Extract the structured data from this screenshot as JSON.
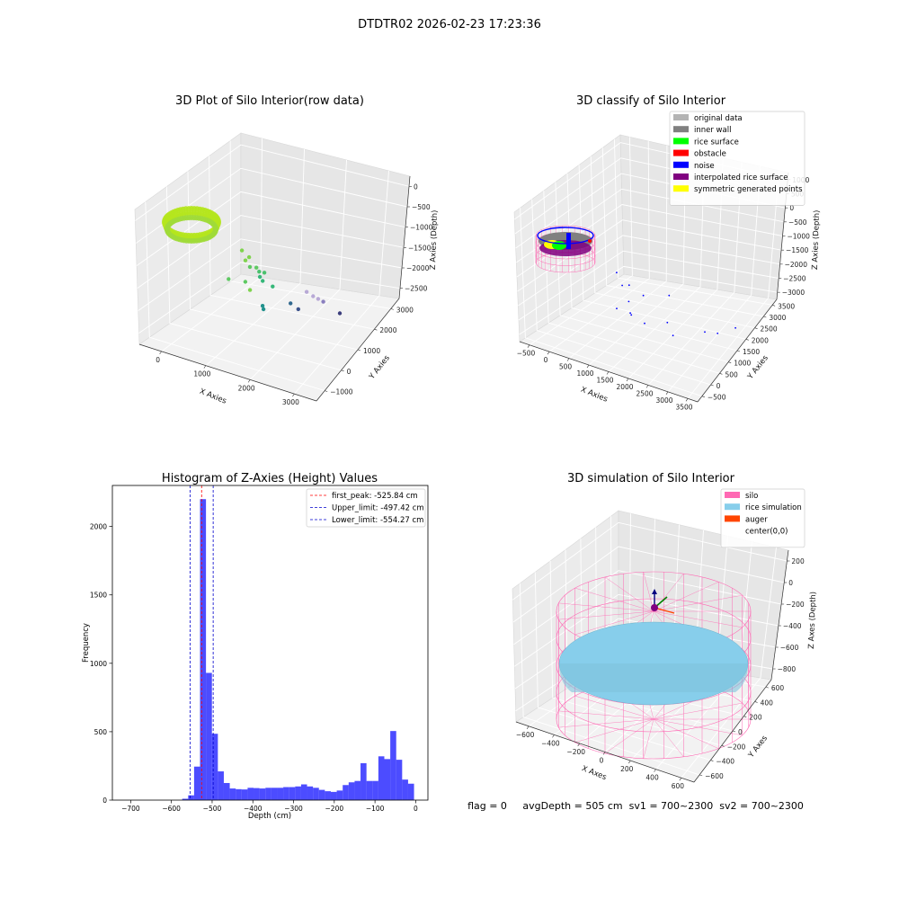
{
  "suptitle": "DTDTR02 2026-02-23 17:23:36",
  "footer": {
    "text": "flag = 0     avgDepth = 505 cm  sv1 = 700~2300  sv2 = 700~2300"
  },
  "chart_data": [
    {
      "type": "scatter3d",
      "title": "3D Plot of Silo Interior(row data)",
      "xlabel": "X Axies",
      "ylabel": "Y Axies",
      "zlabel": "Z Axies (Depth)",
      "x_ticks": [
        "0",
        "1000",
        "2000",
        "3000"
      ],
      "y_ticks": [
        "−1000",
        "0",
        "1000",
        "2000",
        "3000"
      ],
      "z_ticks": [
        "0",
        "−500",
        "−1000",
        "−1500",
        "−2000",
        "−2500"
      ],
      "colormap": "viridis",
      "ring_color": "#b5e61d",
      "points": [
        {
          "x": 1050,
          "y": 300,
          "z": -1030,
          "c": "#7fd34e"
        },
        {
          "x": 1200,
          "y": 200,
          "z": -1200,
          "c": "#7fd34e"
        },
        {
          "x": 1250,
          "y": 300,
          "z": -1150,
          "c": "#7fd34e"
        },
        {
          "x": 1350,
          "y": 150,
          "z": -1300,
          "c": "#5ec962"
        },
        {
          "x": 1500,
          "y": 200,
          "z": -1300,
          "c": "#5ec962"
        },
        {
          "x": 1600,
          "y": 150,
          "z": -1350,
          "c": "#4ac16d"
        },
        {
          "x": 1700,
          "y": 250,
          "z": -1400,
          "c": "#4ac16d"
        },
        {
          "x": 1400,
          "y": -200,
          "z": -1500,
          "c": "#5ec962"
        },
        {
          "x": 1000,
          "y": -300,
          "z": -1500,
          "c": "#5ec962"
        },
        {
          "x": 1650,
          "y": 100,
          "z": -1450,
          "c": "#35b779"
        },
        {
          "x": 1750,
          "y": 50,
          "z": -1500,
          "c": "#35b779"
        },
        {
          "x": 2000,
          "y": 100,
          "z": -1600,
          "c": "#35b779"
        },
        {
          "x": 1500,
          "y": -100,
          "z": -1750,
          "c": "#7fd34e"
        },
        {
          "x": 1900,
          "y": -200,
          "z": -2000,
          "c": "#21918c"
        },
        {
          "x": 1950,
          "y": -250,
          "z": -2050,
          "c": "#21918c"
        },
        {
          "x": 2500,
          "y": 100,
          "z": -1900,
          "c": "#31688e"
        },
        {
          "x": 2700,
          "y": 600,
          "z": -1800,
          "c": "#b8a9d6"
        },
        {
          "x": 2800,
          "y": 800,
          "z": -2000,
          "c": "#b8a9d6"
        },
        {
          "x": 2900,
          "y": 900,
          "z": -2100,
          "c": "#b8a9d6"
        },
        {
          "x": 3000,
          "y": 1000,
          "z": -2200,
          "c": "#8a7fbf"
        },
        {
          "x": 2600,
          "y": 400,
          "z": -2200,
          "c": "#3b528b"
        },
        {
          "x": 3300,
          "y": 1400,
          "z": -2650,
          "c": "#3b3d7c"
        }
      ]
    },
    {
      "type": "scatter3d",
      "title": "3D classify of Silo Interior",
      "xlabel": "X Axies",
      "ylabel": "Y Axies",
      "zlabel": "Z Axies (Depth)",
      "x_ticks": [
        "−500",
        "0",
        "500",
        "1000",
        "1500",
        "2000",
        "2500",
        "3000",
        "3500"
      ],
      "y_ticks": [
        "−500",
        "0",
        "500",
        "1000",
        "1500",
        "2000",
        "2500",
        "3000",
        "3500"
      ],
      "z_ticks": [
        "1000",
        "500",
        "0",
        "−500",
        "−1000",
        "−1500",
        "−2000",
        "−2500",
        "−3000"
      ],
      "legend": {
        "position": "upper right",
        "items": [
          {
            "label": "original data",
            "color": "#b3b3b3"
          },
          {
            "label": "inner wall",
            "color": "#808080"
          },
          {
            "label": "rice surface",
            "color": "#00ff00"
          },
          {
            "label": "obstacle",
            "color": "#ff0000"
          },
          {
            "label": "noise",
            "color": "#0000ff"
          },
          {
            "label": "interpolated rice surface",
            "color": "#800080"
          },
          {
            "label": "symmetric generated points",
            "color": "#ffff00"
          }
        ]
      },
      "noise_points": [
        {
          "x": 1000,
          "y": 500,
          "z": -1000
        },
        {
          "x": 1200,
          "y": 400,
          "z": -1300
        },
        {
          "x": 1400,
          "y": 300,
          "z": -1100
        },
        {
          "x": 1500,
          "y": 100,
          "z": -1500
        },
        {
          "x": 1800,
          "y": 200,
          "z": -1200
        },
        {
          "x": 1300,
          "y": -100,
          "z": -1700
        },
        {
          "x": 1600,
          "y": 0,
          "z": -1800
        },
        {
          "x": 1700,
          "y": -200,
          "z": -1650
        },
        {
          "x": 2000,
          "y": -100,
          "z": -1900
        },
        {
          "x": 2400,
          "y": 300,
          "z": -2000
        },
        {
          "x": 2600,
          "y": 200,
          "z": -2300
        },
        {
          "x": 3100,
          "y": 900,
          "z": -2500
        },
        {
          "x": 3300,
          "y": 1200,
          "z": -2700
        },
        {
          "x": 3500,
          "y": 1800,
          "z": -2900
        },
        {
          "x": 2200,
          "y": 800,
          "z": -1500
        }
      ]
    },
    {
      "type": "bar",
      "subtype": "histogram",
      "title": "Histogram of Z-Axies (Height) Values",
      "xlabel": "Depth (cm)",
      "ylabel": "Frequency",
      "xlim": [
        -745,
        30
      ],
      "ylim": [
        0,
        2300
      ],
      "x_ticks": [
        -700,
        -600,
        -500,
        -400,
        -300,
        -200,
        -100,
        0
      ],
      "x_tick_labels": [
        "−700",
        "−600",
        "−500",
        "−400",
        "−300",
        "−200",
        "−100",
        "0"
      ],
      "y_ticks": [
        0,
        500,
        1000,
        1500,
        2000
      ],
      "y_tick_labels": [
        "0",
        "500",
        "1000",
        "1500",
        "2000"
      ],
      "bar_color": "#0000ff",
      "bar_alpha": 0.7,
      "bin_start": -573.5,
      "bin_width": 14.6,
      "counts": [
        10,
        35,
        245,
        2200,
        930,
        485,
        210,
        125,
        85,
        80,
        78,
        90,
        88,
        85,
        90,
        90,
        90,
        95,
        95,
        100,
        115,
        100,
        90,
        75,
        65,
        60,
        70,
        110,
        130,
        140,
        270,
        140,
        140,
        320,
        300,
        505,
        295,
        150,
        120
      ],
      "vlines": [
        {
          "x": -525.84,
          "color": "#ff0000",
          "label": "first_peak: -525.84 cm"
        },
        {
          "x": -497.42,
          "color": "#0000cc",
          "label": "Upper_limit: -497.42 cm"
        },
        {
          "x": -554.27,
          "color": "#0000cc",
          "label": "Lower_limit: -554.27 cm"
        }
      ],
      "legend_position": "upper right"
    },
    {
      "type": "surface3d",
      "title": "3D simulation of Silo Interior",
      "xlabel": "X Axes",
      "ylabel": "Y Axes",
      "zlabel": "Z Axes (Depth)",
      "x_ticks": [
        "−600",
        "−400",
        "−200",
        "0",
        "200",
        "400",
        "600"
      ],
      "y_ticks": [
        "−600",
        "−400",
        "−200",
        "0",
        "200",
        "400",
        "600"
      ],
      "z_ticks": [
        "200",
        "0",
        "−200",
        "−400",
        "−600",
        "−800"
      ],
      "legend": {
        "position": "upper right",
        "items": [
          {
            "label": "silo",
            "color": "#ff69b4"
          },
          {
            "label": "rice simulation",
            "color": "#87ceeb"
          },
          {
            "label": "auger",
            "color": "#ff4500"
          },
          {
            "label": "center(0,0)",
            "color": ""
          }
        ]
      },
      "silo_color": "#ff69b4",
      "rice_color": "#87ceeb"
    }
  ]
}
